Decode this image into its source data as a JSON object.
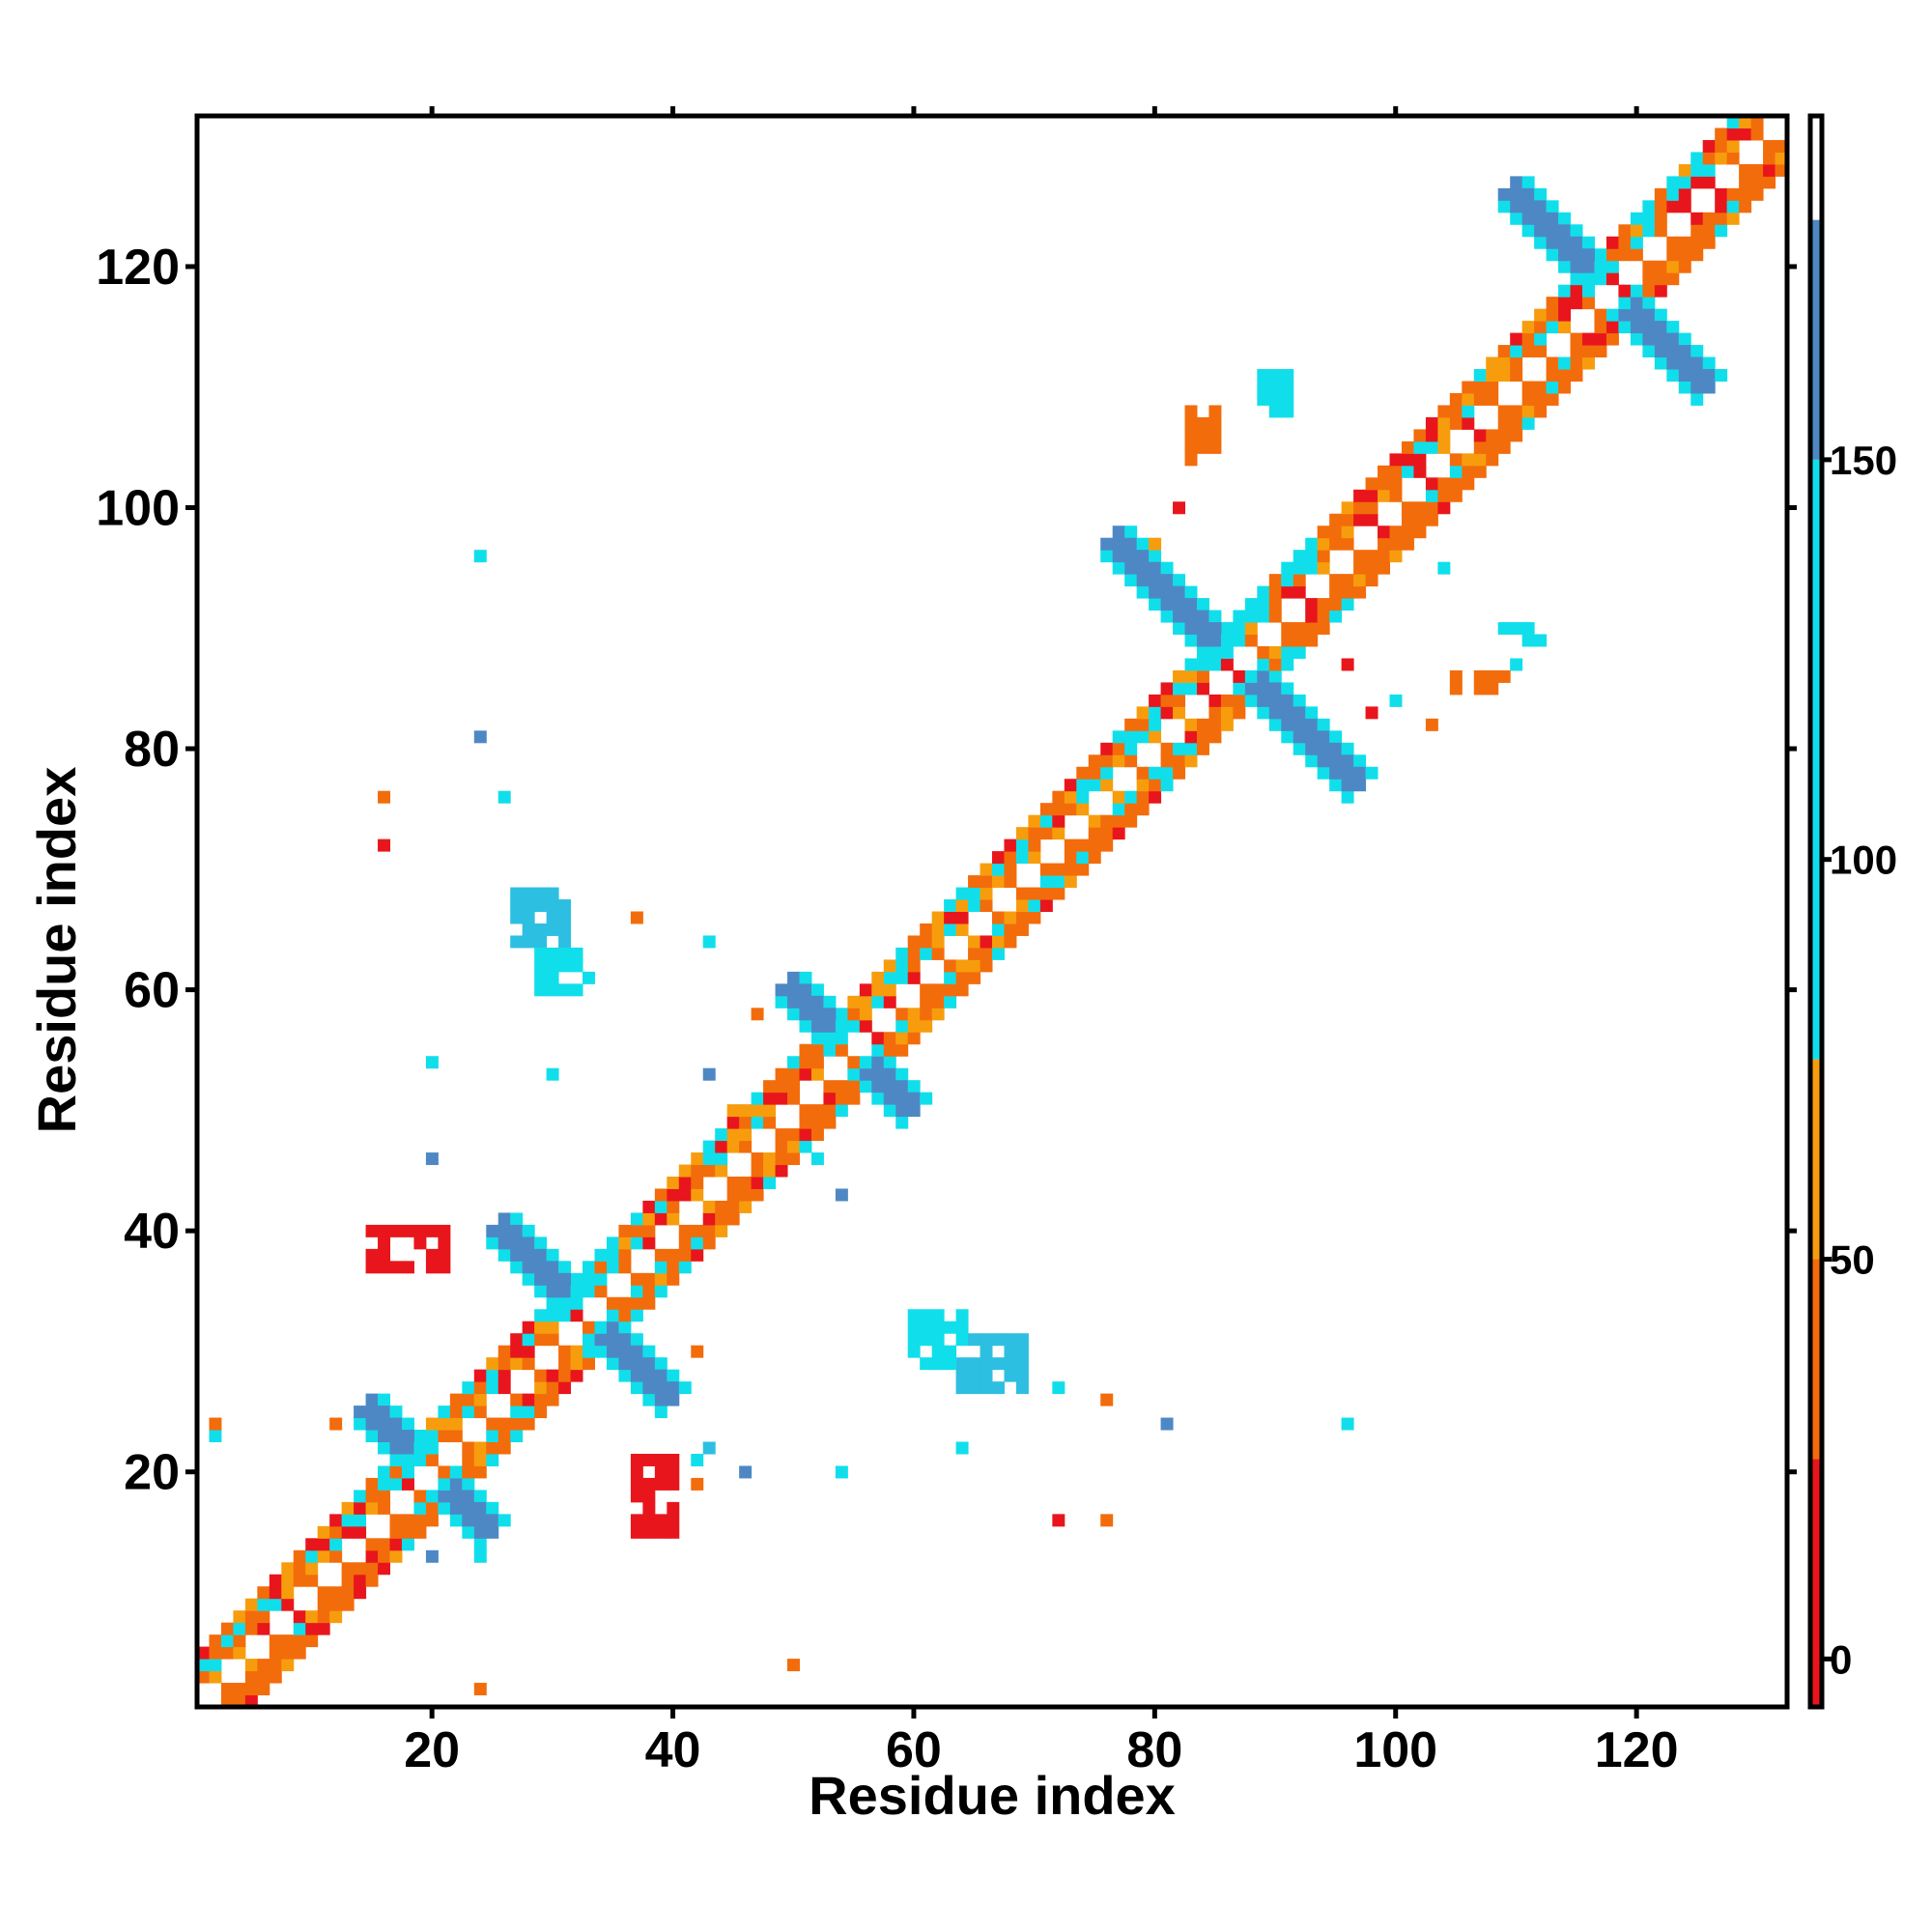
{
  "chart_data": {
    "type": "heatmap",
    "title": "",
    "xlabel": "Residue index",
    "ylabel": "Residue index",
    "xlim": [
      0.5,
      132.5
    ],
    "ylim": [
      0.5,
      132.5
    ],
    "x_ticks": [
      20,
      40,
      60,
      80,
      100,
      120
    ],
    "y_ticks": [
      20,
      40,
      60,
      80,
      100,
      120
    ],
    "colorbar": {
      "range": [
        -6,
        193
      ],
      "ticks": [
        0,
        50,
        100,
        150
      ],
      "bins": [
        {
          "from": -6,
          "to": 25,
          "color": "#e8161c"
        },
        {
          "from": 25,
          "to": 50,
          "color": "#f36c0b"
        },
        {
          "from": 50,
          "to": 75,
          "color": "#f79d0d"
        },
        {
          "from": 75,
          "to": 150,
          "color": "#10dfeb"
        },
        {
          "from": 150,
          "to": 180,
          "color": "#4e88c4"
        },
        {
          "from": 180,
          "to": 193,
          "color": "#ffffff"
        }
      ]
    },
    "color_scale": {
      "red": "#e8161c",
      "orange": "#f36c0b",
      "lightorange": "#f79d0d",
      "cyan": "#10dfeb",
      "lightblue": "#2dbfe2",
      "blue": "#4e88c4"
    },
    "diagonal_bands": [
      {
        "start": 1,
        "end": 131,
        "width": 4
      }
    ],
    "antidiagonal_blobs": [
      {
        "center": [
          20,
          20
        ],
        "half_length": 5,
        "width": 2,
        "colors": [
          "cyan",
          "blue"
        ]
      },
      {
        "center": [
          33,
          33
        ],
        "half_length": 7,
        "width": 2,
        "colors": [
          "cyan",
          "blue"
        ]
      },
      {
        "center": [
          55,
          55
        ],
        "half_length": 5,
        "width": 2,
        "colors": [
          "cyan",
          "blue"
        ]
      },
      {
        "center": [
          87,
          87
        ],
        "half_length": 10,
        "width": 2,
        "colors": [
          "cyan",
          "blue"
        ]
      },
      {
        "center": [
          118,
          118
        ],
        "half_length": 8,
        "width": 2,
        "colors": [
          "cyan",
          "blue"
        ]
      }
    ],
    "offdiagonal_blocks": [
      {
        "x": [
          27,
          31
        ],
        "y": [
          64,
          68
        ],
        "color": "lightblue"
      },
      {
        "x": [
          29,
          33
        ],
        "y": [
          60,
          63
        ],
        "color": "cyan"
      },
      {
        "x": [
          64,
          69
        ],
        "y": [
          27,
          31
        ],
        "color": "lightblue"
      },
      {
        "x": [
          60,
          64
        ],
        "y": [
          29,
          33
        ],
        "color": "cyan"
      },
      {
        "x": [
          37,
          40
        ],
        "y": [
          15,
          21
        ],
        "color": "red"
      },
      {
        "x": [
          15,
          21
        ],
        "y": [
          37,
          40
        ],
        "color": "red"
      },
      {
        "x": [
          109,
          112
        ],
        "y": [
          89,
          90
        ],
        "color": "cyan"
      },
      {
        "x": [
          89,
          91
        ],
        "y": [
          108,
          111
        ],
        "color": "cyan"
      },
      {
        "x": [
          105,
          109
        ],
        "y": [
          85,
          86
        ],
        "color": "orange"
      },
      {
        "x": [
          83,
          85
        ],
        "y": [
          105,
          108
        ],
        "color": "orange"
      }
    ],
    "scattered_cells": [
      [
        24,
        96,
        "cyan"
      ],
      [
        24,
        81,
        "blue"
      ],
      [
        16,
        76,
        "orange"
      ],
      [
        16,
        72,
        "red"
      ],
      [
        26,
        76,
        "cyan"
      ],
      [
        37,
        66,
        "orange"
      ],
      [
        43,
        64,
        "cyan"
      ],
      [
        47,
        58,
        "orange"
      ],
      [
        20,
        54,
        "cyan"
      ],
      [
        20,
        46,
        "blue"
      ],
      [
        30,
        53,
        "cyan"
      ],
      [
        43,
        53,
        "blue"
      ],
      [
        45,
        50,
        "lightorange"
      ],
      [
        52,
        46,
        "cyan"
      ],
      [
        54,
        43,
        "blue"
      ],
      [
        46,
        20,
        "blue"
      ],
      [
        54,
        20,
        "cyan"
      ],
      [
        64,
        22,
        "cyan"
      ],
      [
        72,
        16,
        "red"
      ],
      [
        76,
        16,
        "orange"
      ],
      [
        81,
        24,
        "blue"
      ],
      [
        96,
        24,
        "cyan"
      ],
      [
        2,
        23,
        "cyan"
      ],
      [
        2,
        24,
        "orange"
      ],
      [
        12,
        24,
        "orange"
      ],
      [
        20,
        13,
        "blue"
      ],
      [
        24,
        2,
        "orange"
      ],
      [
        24,
        13,
        "cyan"
      ],
      [
        42,
        30,
        "orange"
      ],
      [
        50,
        4,
        "orange"
      ],
      [
        72,
        27,
        "cyan"
      ],
      [
        76,
        26,
        "orange"
      ],
      [
        80,
        97,
        "lightorange"
      ],
      [
        83,
        104,
        "orange"
      ],
      [
        82,
        100,
        "red"
      ],
      [
        98,
        83,
        "red"
      ],
      [
        100,
        84,
        "cyan"
      ],
      [
        103,
        82,
        "orange"
      ],
      [
        96,
        87,
        "red"
      ],
      [
        104,
        95,
        "cyan"
      ],
      [
        110,
        87,
        "cyan"
      ],
      [
        42,
        21,
        "cyan"
      ],
      [
        43,
        22,
        "lightblue"
      ],
      [
        42,
        19,
        "orange"
      ]
    ]
  }
}
